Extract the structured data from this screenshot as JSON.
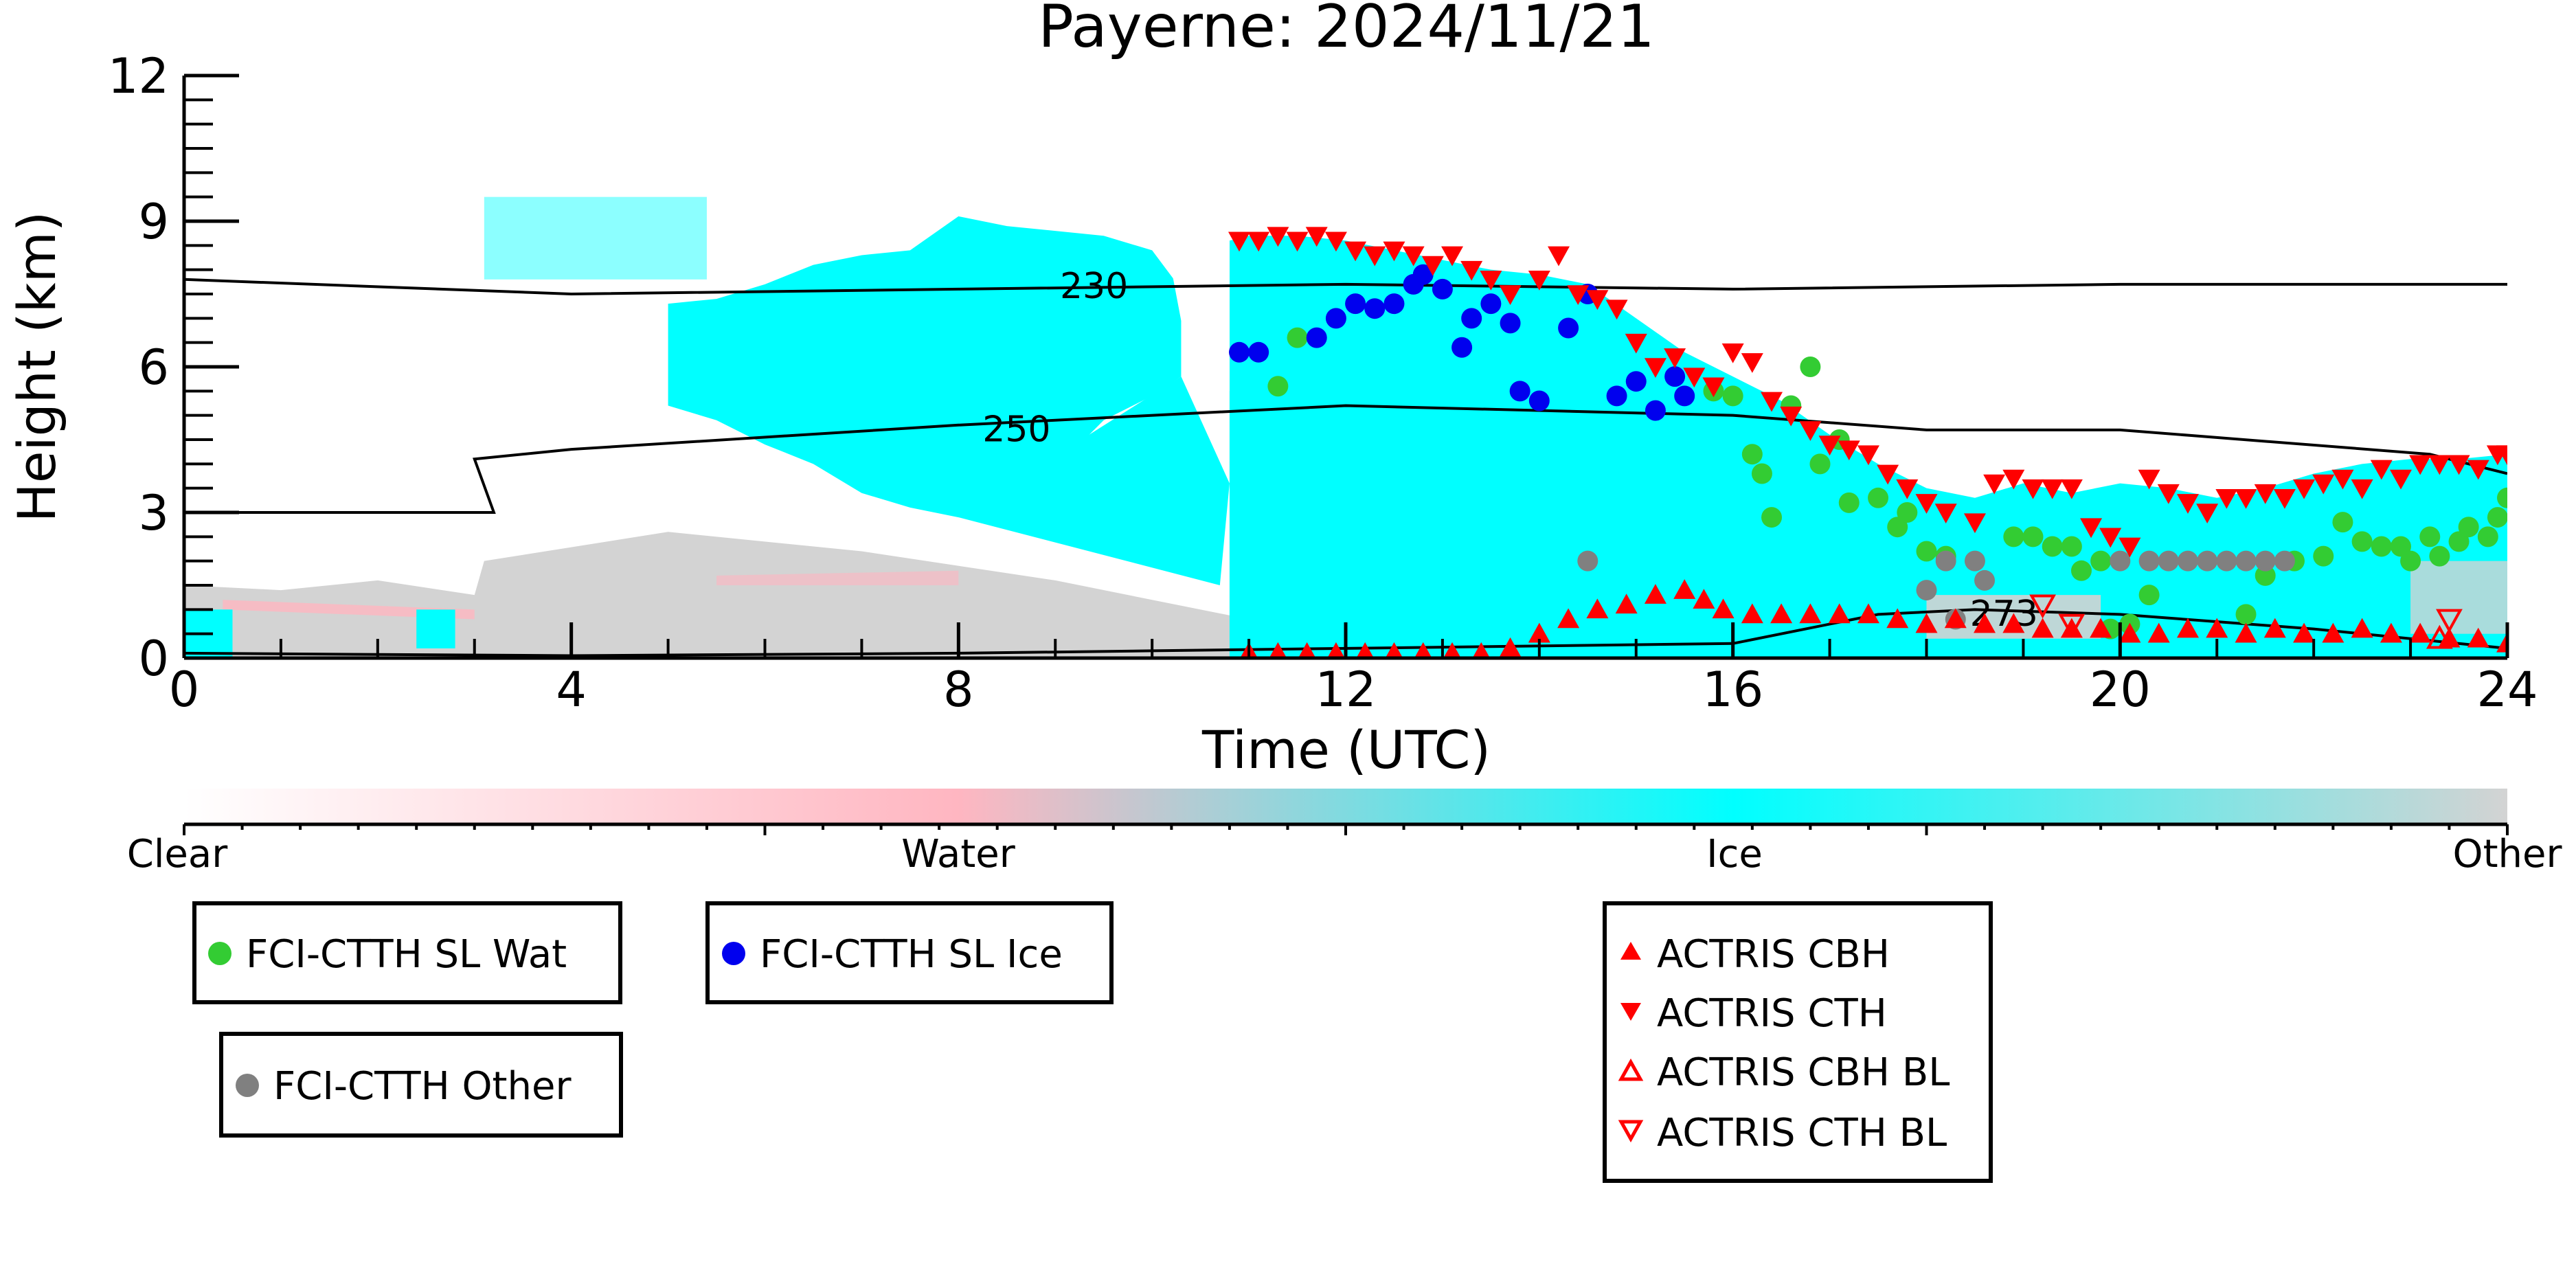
{
  "chart_data": {
    "type": "scatter",
    "title": "Payerne: 2024/11/21",
    "xlabel": "Time (UTC)",
    "ylabel": "Height (km)",
    "xlim": [
      0,
      24
    ],
    "ylim": [
      0,
      12
    ],
    "x_ticks": [
      0,
      4,
      8,
      12,
      16,
      20,
      24
    ],
    "y_ticks": [
      0,
      3,
      6,
      9,
      12
    ],
    "grid": false,
    "background": {
      "description_levels": [
        "Clear",
        "Water",
        "Ice",
        "Other"
      ],
      "colors": {
        "Clear": "#ffffff",
        "Water": "#ffb6c1",
        "Ice": "#00ffff",
        "Other": "#d3d3d3"
      },
      "ice_profile": {
        "x": [
          10.8,
          11.0,
          11.5,
          12.0,
          12.5,
          13.0,
          13.5,
          14.0,
          14.5,
          15.0,
          15.5,
          16.0,
          16.5,
          17.0,
          17.5,
          18.0,
          18.5,
          19.0,
          19.5,
          20.0,
          20.5,
          21.0,
          21.5,
          22.0,
          22.5,
          23.0,
          23.5,
          24.0
        ],
        "top": [
          8.6,
          8.7,
          8.7,
          8.6,
          8.4,
          8.2,
          8.0,
          7.9,
          7.7,
          7.0,
          6.3,
          5.8,
          5.3,
          4.6,
          4.0,
          3.5,
          3.3,
          3.6,
          3.4,
          3.6,
          3.5,
          3.3,
          3.5,
          3.8,
          4.0,
          4.1,
          4.1,
          4.2
        ]
      }
    },
    "contours": [
      {
        "label": "230",
        "x": [
          0,
          4,
          8,
          12,
          16,
          20,
          24
        ],
        "y": [
          7.8,
          7.5,
          7.6,
          7.7,
          7.6,
          7.7,
          7.7
        ]
      },
      {
        "label": "250",
        "x": [
          0,
          3.2,
          3.0,
          4,
          8,
          12,
          16,
          18,
          20,
          23.2,
          24
        ],
        "y": [
          3.0,
          3.0,
          4.1,
          4.3,
          4.8,
          5.2,
          5.0,
          4.7,
          4.7,
          4.2,
          3.8
        ]
      },
      {
        "label": "273",
        "x": [
          0,
          4,
          8,
          10,
          12,
          16,
          17.5,
          18.5,
          20,
          22,
          24
        ],
        "y": [
          0.1,
          0.05,
          0.1,
          0.15,
          0.2,
          0.3,
          0.9,
          1.0,
          0.9,
          0.6,
          0.2
        ]
      }
    ],
    "legend_labels": {
      "box1": [
        "FCI-CTTH SL Wat"
      ],
      "box2": [
        "FCI-CTTH SL Ice"
      ],
      "box3": [
        "FCI-CTTH Other"
      ],
      "box4": [
        "ACTRIS CBH",
        "ACTRIS CTH",
        "ACTRIS CBH BL",
        "ACTRIS CTH BL"
      ]
    },
    "colorbar_labels": [
      "Clear",
      "Water",
      "Ice",
      "Other"
    ],
    "series": [
      {
        "name": "FCI-CTTH SL Wat",
        "color": "#33cc33",
        "marker": "circle",
        "x": [
          11.3,
          11.5,
          15.8,
          16.0,
          16.2,
          16.3,
          16.4,
          16.6,
          16.8,
          16.9,
          17.1,
          17.2,
          17.5,
          17.7,
          17.8,
          18.0,
          18.2,
          18.9,
          19.1,
          19.3,
          19.5,
          19.6,
          19.8,
          20.1,
          20.3,
          21.3,
          21.5,
          21.8,
          22.1,
          22.3,
          22.5,
          22.7,
          22.9,
          23.0,
          23.2,
          23.3,
          23.5,
          23.6,
          23.8,
          23.9,
          24.0,
          19.9
        ],
        "y": [
          5.6,
          6.6,
          5.5,
          5.4,
          4.2,
          3.8,
          2.9,
          5.2,
          6.0,
          4.0,
          4.5,
          3.2,
          3.3,
          2.7,
          3.0,
          2.2,
          2.1,
          2.5,
          2.5,
          2.3,
          2.3,
          1.8,
          2.0,
          0.7,
          1.3,
          0.9,
          1.7,
          2.0,
          2.1,
          2.8,
          2.4,
          2.3,
          2.3,
          2.0,
          2.5,
          2.1,
          2.4,
          2.7,
          2.5,
          2.9,
          3.3,
          0.6
        ]
      },
      {
        "name": "FCI-CTTH SL Ice",
        "color": "#0000ee",
        "marker": "circle",
        "x": [
          10.9,
          11.1,
          11.7,
          11.9,
          12.1,
          12.3,
          12.5,
          12.7,
          12.8,
          13.0,
          13.2,
          13.3,
          13.5,
          13.7,
          13.8,
          14.0,
          14.3,
          14.5,
          14.8,
          15.0,
          15.2,
          15.4,
          15.5
        ],
        "y": [
          6.3,
          6.3,
          6.6,
          7.0,
          7.3,
          7.2,
          7.3,
          7.7,
          7.9,
          7.6,
          6.4,
          7.0,
          7.3,
          6.9,
          5.5,
          5.3,
          6.8,
          7.5,
          5.4,
          5.7,
          5.1,
          5.8,
          5.4
        ]
      },
      {
        "name": "FCI-CTTH Other",
        "color": "#808080",
        "marker": "circle",
        "x": [
          14.5,
          18.0,
          18.2,
          18.3,
          18.5,
          18.6,
          20.0,
          20.3,
          20.5,
          20.7,
          20.9,
          21.1,
          21.3,
          21.5,
          21.7
        ],
        "y": [
          2.0,
          1.4,
          2.0,
          0.8,
          2.0,
          1.6,
          2.0,
          2.0,
          2.0,
          2.0,
          2.0,
          2.0,
          2.0,
          2.0,
          2.0
        ]
      },
      {
        "name": "ACTRIS CBH",
        "color": "#ff0000",
        "marker": "triangle-up",
        "x": [
          11.0,
          11.3,
          11.6,
          11.9,
          12.2,
          12.5,
          12.8,
          13.1,
          13.4,
          13.7,
          14.0,
          14.3,
          14.6,
          14.9,
          15.2,
          15.5,
          15.7,
          15.9,
          16.2,
          16.5,
          16.8,
          17.1,
          17.4,
          17.7,
          18.0,
          18.3,
          18.6,
          18.9,
          19.2,
          19.5,
          19.8,
          20.1,
          20.4,
          20.7,
          21.0,
          21.3,
          21.6,
          21.9,
          22.2,
          22.5,
          22.8,
          23.1,
          23.4,
          23.7,
          24.0
        ],
        "y": [
          0.1,
          0.1,
          0.1,
          0.1,
          0.1,
          0.1,
          0.1,
          0.1,
          0.1,
          0.2,
          0.5,
          0.8,
          1.0,
          1.1,
          1.3,
          1.4,
          1.2,
          1.0,
          0.9,
          0.9,
          0.9,
          0.9,
          0.9,
          0.8,
          0.7,
          0.8,
          0.7,
          0.7,
          0.6,
          0.6,
          0.6,
          0.5,
          0.5,
          0.6,
          0.6,
          0.5,
          0.6,
          0.5,
          0.5,
          0.6,
          0.5,
          0.5,
          0.4,
          0.4,
          0.3
        ]
      },
      {
        "name": "ACTRIS CTH",
        "color": "#ff0000",
        "marker": "triangle-down",
        "x": [
          10.9,
          11.1,
          11.3,
          11.5,
          11.7,
          11.9,
          12.1,
          12.3,
          12.5,
          12.7,
          12.9,
          13.1,
          13.3,
          13.5,
          13.7,
          14.0,
          14.2,
          14.4,
          14.6,
          14.8,
          15.0,
          15.2,
          15.4,
          15.6,
          15.8,
          16.0,
          16.2,
          16.4,
          16.6,
          16.8,
          17.0,
          17.2,
          17.4,
          17.6,
          17.8,
          18.0,
          18.2,
          18.5,
          18.7,
          18.9,
          19.1,
          19.3,
          19.5,
          19.7,
          19.9,
          20.1,
          20.3,
          20.5,
          20.7,
          20.9,
          21.1,
          21.3,
          21.5,
          21.7,
          21.9,
          22.1,
          22.3,
          22.5,
          22.7,
          22.9,
          23.1,
          23.3,
          23.5,
          23.7,
          23.9,
          24.0
        ],
        "y": [
          8.6,
          8.6,
          8.7,
          8.6,
          8.7,
          8.6,
          8.4,
          8.3,
          8.4,
          8.3,
          8.1,
          8.3,
          8.0,
          7.8,
          7.5,
          7.8,
          8.3,
          7.5,
          7.4,
          7.2,
          6.5,
          6.0,
          6.2,
          5.8,
          5.6,
          6.3,
          6.1,
          5.3,
          5.0,
          4.7,
          4.4,
          4.3,
          4.2,
          3.8,
          3.5,
          3.2,
          3.0,
          2.8,
          3.6,
          3.7,
          3.5,
          3.5,
          3.5,
          2.7,
          2.5,
          2.3,
          3.7,
          3.4,
          3.2,
          3.0,
          3.3,
          3.3,
          3.4,
          3.3,
          3.5,
          3.6,
          3.7,
          3.5,
          3.9,
          3.7,
          4.0,
          4.0,
          4.0,
          3.9,
          4.2,
          4.2
        ]
      },
      {
        "name": "ACTRIS CBH BL",
        "color": "#ff0000",
        "marker": "triangle-up-open",
        "x": [
          23.3
        ],
        "y": [
          0.4
        ]
      },
      {
        "name": "ACTRIS CTH BL",
        "color": "#ff0000",
        "marker": "triangle-down-open",
        "x": [
          19.2,
          19.5,
          23.4
        ],
        "y": [
          1.1,
          0.7,
          0.8
        ]
      }
    ]
  }
}
